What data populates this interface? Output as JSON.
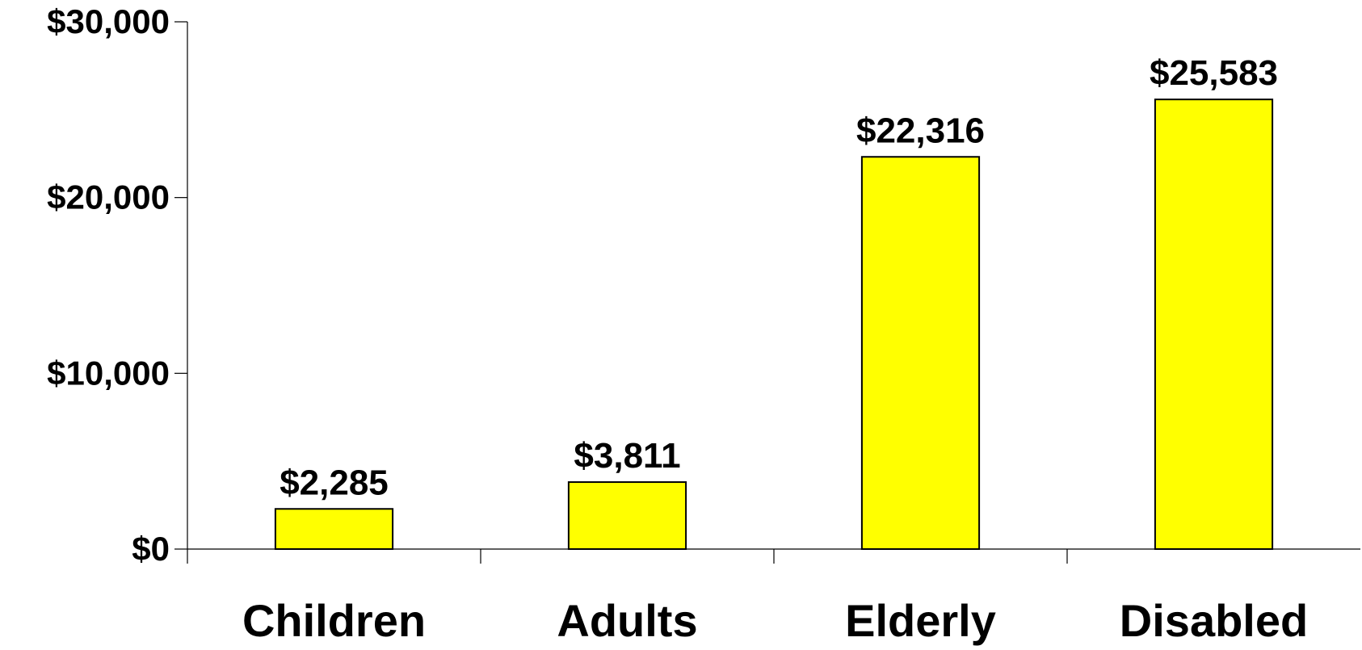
{
  "chart_data": {
    "type": "bar",
    "title": "",
    "xlabel": "",
    "ylabel": "",
    "categories": [
      "Children",
      "Adults",
      "Elderly",
      "Disabled"
    ],
    "values": [
      2285,
      3811,
      22316,
      25583
    ],
    "value_labels": [
      "$2,285",
      "$3,811",
      "$22,316",
      "$25,583"
    ],
    "ylim": [
      0,
      30000
    ],
    "yticks": [
      0,
      10000,
      20000,
      30000
    ],
    "ytick_labels": [
      "$0",
      "$10,000",
      "$20,000",
      "$30,000"
    ],
    "grid": false,
    "legend": "none",
    "bar_color": "#FFFF00",
    "bar_edge_color": "#000000"
  }
}
